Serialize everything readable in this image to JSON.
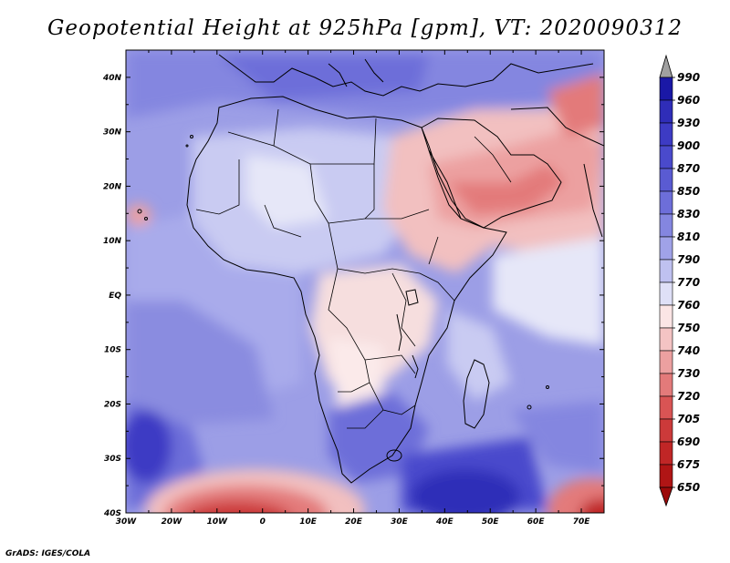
{
  "title": "Geopotential Height at 925hPa [gpm], VT: 2020090312",
  "credit": "GrADS: IGES/COLA",
  "map": {
    "lat_labels": [
      "40N",
      "30N",
      "20N",
      "10N",
      "EQ",
      "10S",
      "20S",
      "30S",
      "40S"
    ],
    "lon_labels": [
      "30W",
      "20W",
      "10W",
      "0",
      "10E",
      "20E",
      "30E",
      "40E",
      "50E",
      "60E",
      "70E"
    ],
    "lat_range": [
      -40,
      45
    ],
    "lon_range": [
      -30,
      75
    ]
  },
  "colorbar": {
    "levels": [
      "990",
      "960",
      "930",
      "900",
      "870",
      "850",
      "830",
      "810",
      "790",
      "770",
      "760",
      "750",
      "740",
      "730",
      "720",
      "705",
      "690",
      "675",
      "650"
    ],
    "colors": [
      "#a0a0a0",
      "#1a18a6",
      "#2f2db8",
      "#3d3bc4",
      "#4a4acc",
      "#5a5bd2",
      "#6d6ed9",
      "#8486e0",
      "#a0a2e8",
      "#bfc1f0",
      "#dfe0f7",
      "#fbe5e5",
      "#f4c4c4",
      "#eca0a0",
      "#e37a7a",
      "#d95454",
      "#cc3a3a",
      "#c02626",
      "#b01515",
      "#9c0a0a"
    ]
  }
}
